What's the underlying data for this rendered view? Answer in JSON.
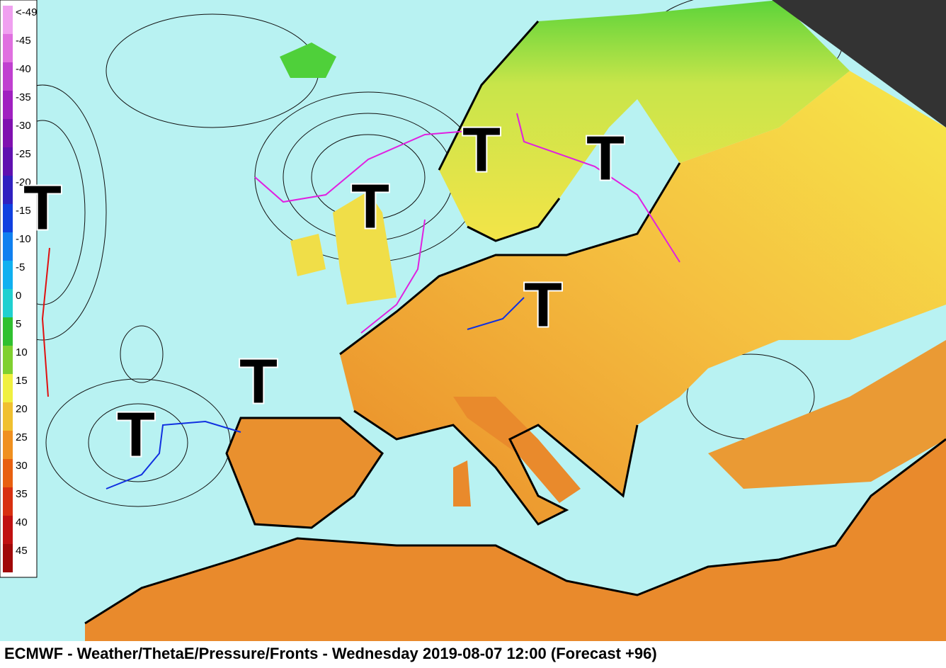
{
  "legend": {
    "labels": [
      "<-49",
      "-45",
      "-40",
      "-35",
      "-30",
      "-25",
      "-20",
      "-15",
      "-10",
      "-5",
      "0",
      "5",
      "10",
      "15",
      "20",
      "25",
      "30",
      "35",
      "40",
      "45"
    ]
  },
  "lows": [
    {
      "label": "T"
    },
    {
      "label": "T"
    },
    {
      "label": "T"
    },
    {
      "label": "T"
    },
    {
      "label": "T"
    },
    {
      "label": "T"
    },
    {
      "label": "T"
    }
  ],
  "footer": {
    "title": "ECMWF - Weather/ThetaE/Pressure/Fronts - Wednesday 2019-08-07 12:00 (Forecast +96)"
  }
}
